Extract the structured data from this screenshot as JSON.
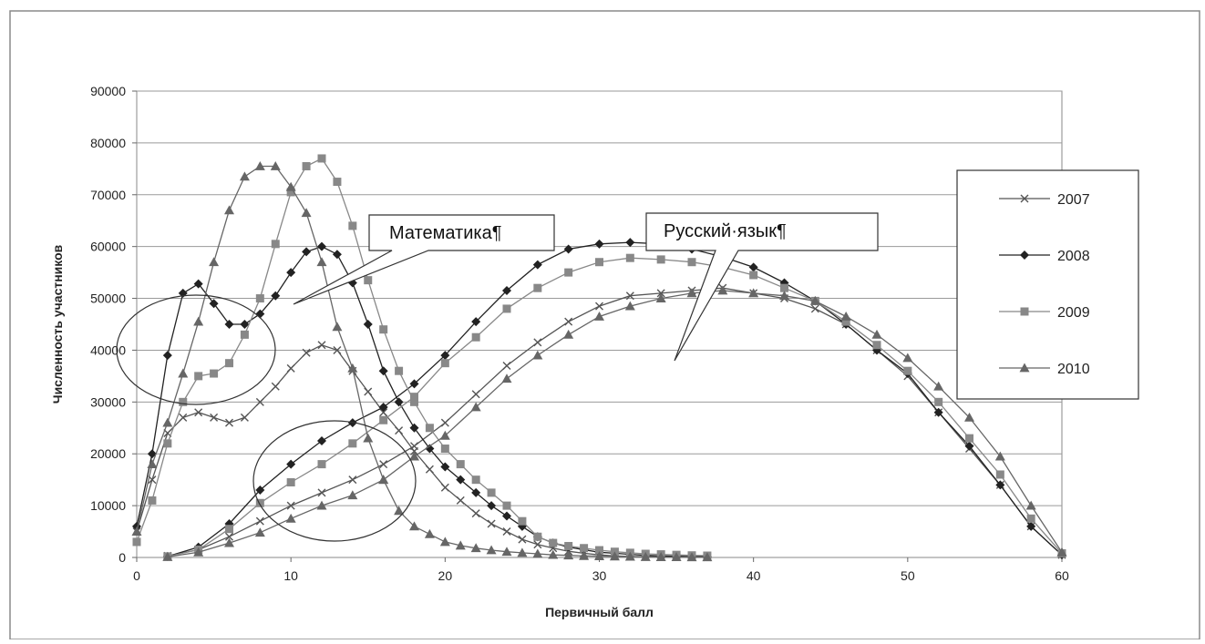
{
  "chart_data": {
    "type": "line",
    "title": "",
    "xlabel": "Первичный балл",
    "ylabel": "Численность участников",
    "xlim": [
      0,
      60
    ],
    "ylim": [
      0,
      90000
    ],
    "x_ticks": [
      0,
      10,
      20,
      30,
      40,
      50,
      60
    ],
    "y_ticks": [
      0,
      10000,
      20000,
      30000,
      40000,
      50000,
      60000,
      70000,
      80000,
      90000
    ],
    "grid": "horizontal",
    "legend_position": "right",
    "annotations": [
      {
        "text": "Математика¶"
      },
      {
        "text": "Русский·язык¶"
      }
    ],
    "series": [
      {
        "name": "2007",
        "marker": "x",
        "color": "#555555",
        "groups": [
          [
            [
              0,
              5000
            ],
            [
              1,
              15000
            ],
            [
              2,
              24000
            ],
            [
              3,
              27000
            ],
            [
              4,
              28000
            ],
            [
              5,
              27000
            ],
            [
              6,
              26000
            ],
            [
              7,
              27000
            ],
            [
              8,
              30000
            ],
            [
              9,
              33000
            ],
            [
              10,
              36500
            ],
            [
              11,
              39500
            ],
            [
              12,
              41000
            ],
            [
              13,
              40000
            ],
            [
              14,
              36000
            ],
            [
              15,
              32000
            ],
            [
              16,
              28000
            ],
            [
              17,
              24500
            ],
            [
              18,
              20500
            ],
            [
              19,
              17000
            ],
            [
              20,
              13500
            ],
            [
              21,
              11000
            ],
            [
              22,
              8500
            ],
            [
              23,
              6500
            ],
            [
              24,
              5000
            ],
            [
              25,
              3500
            ],
            [
              26,
              2500
            ],
            [
              27,
              1800
            ],
            [
              28,
              1200
            ],
            [
              29,
              800
            ],
            [
              30,
              500
            ],
            [
              31,
              300
            ],
            [
              32,
              200
            ],
            [
              33,
              150
            ],
            [
              34,
              100
            ],
            [
              35,
              80
            ],
            [
              36,
              60
            ],
            [
              37,
              50
            ]
          ],
          [
            [
              2,
              300
            ],
            [
              4,
              1500
            ],
            [
              6,
              4000
            ],
            [
              8,
              7000
            ],
            [
              10,
              10000
            ],
            [
              12,
              12500
            ],
            [
              14,
              15000
            ],
            [
              16,
              18000
            ],
            [
              18,
              21500
            ],
            [
              20,
              26000
            ],
            [
              22,
              31500
            ],
            [
              24,
              37000
            ],
            [
              26,
              41500
            ],
            [
              28,
              45500
            ],
            [
              30,
              48500
            ],
            [
              32,
              50500
            ],
            [
              34,
              51000
            ],
            [
              36,
              51500
            ],
            [
              38,
              52000
            ],
            [
              40,
              51000
            ],
            [
              42,
              50000
            ],
            [
              44,
              48000
            ],
            [
              46,
              45000
            ],
            [
              48,
              40000
            ],
            [
              50,
              35000
            ],
            [
              52,
              28000
            ],
            [
              54,
              21000
            ],
            [
              56,
              14000
            ],
            [
              58,
              6000
            ],
            [
              60,
              500
            ]
          ]
        ]
      },
      {
        "name": "2008",
        "marker": "diamond",
        "color": "#222222",
        "groups": [
          [
            [
              0,
              6000
            ],
            [
              1,
              20000
            ],
            [
              2,
              39000
            ],
            [
              3,
              51000
            ],
            [
              4,
              52800
            ],
            [
              5,
              49000
            ],
            [
              6,
              45000
            ],
            [
              7,
              45000
            ],
            [
              8,
              47000
            ],
            [
              9,
              50500
            ],
            [
              10,
              55000
            ],
            [
              11,
              59000
            ],
            [
              12,
              60000
            ],
            [
              13,
              58500
            ],
            [
              14,
              53000
            ],
            [
              15,
              45000
            ],
            [
              16,
              36000
            ],
            [
              17,
              30000
            ],
            [
              18,
              25000
            ],
            [
              19,
              21000
            ],
            [
              20,
              17500
            ],
            [
              21,
              15000
            ],
            [
              22,
              12500
            ],
            [
              23,
              10000
            ],
            [
              24,
              8000
            ],
            [
              25,
              6000
            ],
            [
              26,
              4000
            ],
            [
              27,
              2800
            ],
            [
              28,
              2000
            ],
            [
              29,
              1500
            ],
            [
              30,
              1000
            ],
            [
              31,
              800
            ],
            [
              32,
              600
            ],
            [
              33,
              400
            ],
            [
              34,
              300
            ],
            [
              35,
              250
            ],
            [
              36,
              200
            ],
            [
              37,
              150
            ]
          ],
          [
            [
              2,
              200
            ],
            [
              4,
              2000
            ],
            [
              6,
              6500
            ],
            [
              8,
              13000
            ],
            [
              10,
              18000
            ],
            [
              12,
              22500
            ],
            [
              14,
              26000
            ],
            [
              16,
              29000
            ],
            [
              18,
              33500
            ],
            [
              20,
              39000
            ],
            [
              22,
              45500
            ],
            [
              24,
              51500
            ],
            [
              26,
              56500
            ],
            [
              28,
              59500
            ],
            [
              30,
              60500
            ],
            [
              32,
              60800
            ],
            [
              34,
              60500
            ],
            [
              36,
              59500
            ],
            [
              38,
              58000
            ],
            [
              40,
              56000
            ],
            [
              42,
              53000
            ],
            [
              44,
              49500
            ],
            [
              46,
              45000
            ],
            [
              48,
              40000
            ],
            [
              50,
              35500
            ],
            [
              52,
              28000
            ],
            [
              54,
              21500
            ],
            [
              56,
              14000
            ],
            [
              58,
              6000
            ],
            [
              60,
              500
            ]
          ]
        ]
      },
      {
        "name": "2009",
        "marker": "square",
        "color": "#888888",
        "groups": [
          [
            [
              0,
              3000
            ],
            [
              1,
              11000
            ],
            [
              2,
              22000
            ],
            [
              3,
              30000
            ],
            [
              4,
              35000
            ],
            [
              5,
              35500
            ],
            [
              6,
              37500
            ],
            [
              7,
              43000
            ],
            [
              8,
              50000
            ],
            [
              9,
              60500
            ],
            [
              10,
              70500
            ],
            [
              11,
              75500
            ],
            [
              12,
              77000
            ],
            [
              13,
              72500
            ],
            [
              14,
              64000
            ],
            [
              15,
              53500
            ],
            [
              16,
              44000
            ],
            [
              17,
              36000
            ],
            [
              18,
              30000
            ],
            [
              19,
              25000
            ],
            [
              20,
              21000
            ],
            [
              21,
              18000
            ],
            [
              22,
              15000
            ],
            [
              23,
              12500
            ],
            [
              24,
              10000
            ],
            [
              25,
              7000
            ],
            [
              26,
              4000
            ],
            [
              27,
              2800
            ],
            [
              28,
              2200
            ],
            [
              29,
              1800
            ],
            [
              30,
              1400
            ],
            [
              31,
              1100
            ],
            [
              32,
              900
            ],
            [
              33,
              700
            ],
            [
              34,
              600
            ],
            [
              35,
              500
            ],
            [
              36,
              400
            ],
            [
              37,
              350
            ]
          ],
          [
            [
              2,
              200
            ],
            [
              4,
              1500
            ],
            [
              6,
              5500
            ],
            [
              8,
              10500
            ],
            [
              10,
              14500
            ],
            [
              12,
              18000
            ],
            [
              14,
              22000
            ],
            [
              16,
              26500
            ],
            [
              18,
              31000
            ],
            [
              20,
              37500
            ],
            [
              22,
              42500
            ],
            [
              24,
              48000
            ],
            [
              26,
              52000
            ],
            [
              28,
              55000
            ],
            [
              30,
              57000
            ],
            [
              32,
              57800
            ],
            [
              34,
              57500
            ],
            [
              36,
              57000
            ],
            [
              38,
              56000
            ],
            [
              40,
              54500
            ],
            [
              42,
              52000
            ],
            [
              44,
              49500
            ],
            [
              46,
              45500
            ],
            [
              48,
              41000
            ],
            [
              50,
              36000
            ],
            [
              52,
              30000
            ],
            [
              54,
              23000
            ],
            [
              56,
              16000
            ],
            [
              58,
              7500
            ],
            [
              60,
              800
            ]
          ]
        ]
      },
      {
        "name": "2010",
        "marker": "triangle",
        "color": "#666666",
        "groups": [
          [
            [
              0,
              5000
            ],
            [
              1,
              18000
            ],
            [
              2,
              26000
            ],
            [
              3,
              35500
            ],
            [
              4,
              45500
            ],
            [
              5,
              57000
            ],
            [
              6,
              67000
            ],
            [
              7,
              73500
            ],
            [
              8,
              75500
            ],
            [
              9,
              75500
            ],
            [
              10,
              71500
            ],
            [
              11,
              66500
            ],
            [
              12,
              57000
            ],
            [
              13,
              44500
            ],
            [
              14,
              36500
            ],
            [
              15,
              23000
            ],
            [
              16,
              15000
            ],
            [
              17,
              9000
            ],
            [
              18,
              6000
            ],
            [
              19,
              4500
            ],
            [
              20,
              3000
            ],
            [
              21,
              2300
            ],
            [
              22,
              1800
            ],
            [
              23,
              1400
            ],
            [
              24,
              1100
            ],
            [
              25,
              900
            ],
            [
              26,
              700
            ],
            [
              27,
              500
            ],
            [
              28,
              400
            ],
            [
              29,
              300
            ],
            [
              30,
              250
            ],
            [
              31,
              200
            ],
            [
              32,
              150
            ],
            [
              33,
              100
            ],
            [
              34,
              80
            ],
            [
              35,
              60
            ],
            [
              36,
              50
            ],
            [
              37,
              40
            ]
          ],
          [
            [
              2,
              100
            ],
            [
              4,
              1000
            ],
            [
              6,
              2800
            ],
            [
              8,
              4800
            ],
            [
              10,
              7500
            ],
            [
              12,
              10000
            ],
            [
              14,
              12000
            ],
            [
              16,
              15000
            ],
            [
              18,
              19500
            ],
            [
              20,
              23500
            ],
            [
              22,
              29000
            ],
            [
              24,
              34500
            ],
            [
              26,
              39000
            ],
            [
              28,
              43000
            ],
            [
              30,
              46500
            ],
            [
              32,
              48500
            ],
            [
              34,
              50000
            ],
            [
              36,
              51000
            ],
            [
              38,
              51500
            ],
            [
              40,
              51000
            ],
            [
              42,
              50500
            ],
            [
              44,
              49500
            ],
            [
              46,
              46500
            ],
            [
              48,
              43000
            ],
            [
              50,
              38500
            ],
            [
              52,
              33000
            ],
            [
              54,
              27000
            ],
            [
              56,
              19500
            ],
            [
              58,
              10000
            ],
            [
              60,
              1000
            ]
          ]
        ]
      }
    ]
  }
}
